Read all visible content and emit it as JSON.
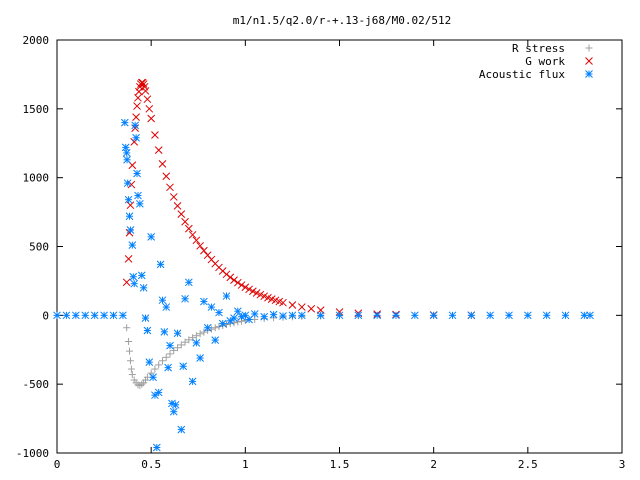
{
  "chart_data": {
    "type": "scatter",
    "title": "m1/n1.5/q2.0/r-+.13-j68/M0.02/512",
    "xlabel": "",
    "ylabel": "",
    "xlim": [
      0,
      3
    ],
    "ylim": [
      -1000,
      2000
    ],
    "xticks": [
      0,
      0.5,
      1,
      1.5,
      2,
      2.5,
      3
    ],
    "xtick_labels": [
      "0",
      "0.5",
      "1",
      "1.5",
      "2",
      "2.5",
      "3"
    ],
    "yticks": [
      -1000,
      -500,
      0,
      500,
      1000,
      1500,
      2000
    ],
    "ytick_labels": [
      "-1000",
      "-500",
      "0",
      "500",
      "1000",
      "1500",
      "2000"
    ],
    "grid": false,
    "legend_position": "top-right",
    "series": [
      {
        "name": "R stress",
        "marker": "plus",
        "color": "#a0a0a0",
        "points": [
          [
            0.37,
            -90
          ],
          [
            0.38,
            -190
          ],
          [
            0.385,
            -260
          ],
          [
            0.39,
            -330
          ],
          [
            0.395,
            -390
          ],
          [
            0.4,
            -430
          ],
          [
            0.41,
            -470
          ],
          [
            0.42,
            -490
          ],
          [
            0.43,
            -505
          ],
          [
            0.44,
            -510
          ],
          [
            0.45,
            -500
          ],
          [
            0.46,
            -490
          ],
          [
            0.47,
            -470
          ],
          [
            0.48,
            -450
          ],
          [
            0.5,
            -420
          ],
          [
            0.52,
            -390
          ],
          [
            0.54,
            -360
          ],
          [
            0.56,
            -330
          ],
          [
            0.58,
            -305
          ],
          [
            0.6,
            -280
          ],
          [
            0.62,
            -255
          ],
          [
            0.64,
            -235
          ],
          [
            0.66,
            -215
          ],
          [
            0.68,
            -195
          ],
          [
            0.7,
            -178
          ],
          [
            0.72,
            -162
          ],
          [
            0.74,
            -148
          ],
          [
            0.76,
            -134
          ],
          [
            0.78,
            -122
          ],
          [
            0.8,
            -110
          ],
          [
            0.82,
            -100
          ],
          [
            0.84,
            -90
          ],
          [
            0.86,
            -82
          ],
          [
            0.88,
            -74
          ],
          [
            0.9,
            -67
          ],
          [
            0.92,
            -60
          ],
          [
            0.94,
            -54
          ],
          [
            0.96,
            -48
          ],
          [
            0.98,
            -43
          ],
          [
            1.0,
            -38
          ],
          [
            1.05,
            -30
          ],
          [
            1.1,
            -23
          ],
          [
            1.15,
            -18
          ],
          [
            1.2,
            -14
          ],
          [
            1.25,
            -11
          ],
          [
            1.3,
            -8
          ],
          [
            1.4,
            -5
          ],
          [
            1.5,
            -3
          ],
          [
            1.6,
            -2
          ],
          [
            1.8,
            -1
          ],
          [
            2.0,
            0
          ],
          [
            2.2,
            0
          ]
        ]
      },
      {
        "name": "G work",
        "marker": "cross",
        "color": "#e00000",
        "points": [
          [
            0.37,
            240
          ],
          [
            0.38,
            410
          ],
          [
            0.385,
            600
          ],
          [
            0.39,
            800
          ],
          [
            0.395,
            950
          ],
          [
            0.4,
            1090
          ],
          [
            0.41,
            1260
          ],
          [
            0.415,
            1360
          ],
          [
            0.42,
            1440
          ],
          [
            0.425,
            1520
          ],
          [
            0.43,
            1580
          ],
          [
            0.435,
            1625
          ],
          [
            0.44,
            1660
          ],
          [
            0.445,
            1680
          ],
          [
            0.45,
            1690
          ],
          [
            0.455,
            1690
          ],
          [
            0.46,
            1680
          ],
          [
            0.465,
            1660
          ],
          [
            0.47,
            1630
          ],
          [
            0.48,
            1570
          ],
          [
            0.49,
            1500
          ],
          [
            0.5,
            1430
          ],
          [
            0.52,
            1310
          ],
          [
            0.54,
            1200
          ],
          [
            0.56,
            1100
          ],
          [
            0.58,
            1010
          ],
          [
            0.6,
            930
          ],
          [
            0.62,
            860
          ],
          [
            0.64,
            795
          ],
          [
            0.66,
            735
          ],
          [
            0.68,
            680
          ],
          [
            0.7,
            630
          ],
          [
            0.72,
            585
          ],
          [
            0.74,
            545
          ],
          [
            0.76,
            505
          ],
          [
            0.78,
            470
          ],
          [
            0.8,
            437
          ],
          [
            0.82,
            405
          ],
          [
            0.84,
            375
          ],
          [
            0.86,
            348
          ],
          [
            0.88,
            322
          ],
          [
            0.9,
            298
          ],
          [
            0.92,
            276
          ],
          [
            0.94,
            256
          ],
          [
            0.96,
            237
          ],
          [
            0.98,
            220
          ],
          [
            1.0,
            204
          ],
          [
            1.02,
            189
          ],
          [
            1.04,
            175
          ],
          [
            1.06,
            162
          ],
          [
            1.08,
            150
          ],
          [
            1.1,
            139
          ],
          [
            1.12,
            128
          ],
          [
            1.14,
            118
          ],
          [
            1.16,
            109
          ],
          [
            1.18,
            100
          ],
          [
            1.2,
            92
          ],
          [
            1.25,
            75
          ],
          [
            1.3,
            60
          ],
          [
            1.35,
            48
          ],
          [
            1.4,
            38
          ],
          [
            1.5,
            24
          ],
          [
            1.6,
            15
          ],
          [
            1.7,
            9
          ],
          [
            1.8,
            6
          ],
          [
            2.0,
            3
          ],
          [
            2.2,
            1
          ]
        ]
      },
      {
        "name": "Acoustic flux",
        "marker": "star",
        "color": "#0080ff",
        "points": [
          [
            0.0,
            0
          ],
          [
            0.05,
            0
          ],
          [
            0.1,
            0
          ],
          [
            0.15,
            0
          ],
          [
            0.2,
            0
          ],
          [
            0.25,
            0
          ],
          [
            0.3,
            0
          ],
          [
            0.35,
            0
          ],
          [
            0.36,
            1400
          ],
          [
            0.365,
            1220
          ],
          [
            0.37,
            1180
          ],
          [
            0.372,
            1130
          ],
          [
            0.375,
            960
          ],
          [
            0.38,
            840
          ],
          [
            0.385,
            720
          ],
          [
            0.39,
            620
          ],
          [
            0.4,
            510
          ],
          [
            0.405,
            280
          ],
          [
            0.41,
            230
          ],
          [
            0.415,
            1380
          ],
          [
            0.42,
            1290
          ],
          [
            0.425,
            1030
          ],
          [
            0.43,
            870
          ],
          [
            0.44,
            810
          ],
          [
            0.45,
            290
          ],
          [
            0.46,
            200
          ],
          [
            0.47,
            -20
          ],
          [
            0.48,
            -110
          ],
          [
            0.49,
            -340
          ],
          [
            0.5,
            570
          ],
          [
            0.51,
            -450
          ],
          [
            0.52,
            -580
          ],
          [
            0.53,
            -960
          ],
          [
            0.54,
            -560
          ],
          [
            0.55,
            370
          ],
          [
            0.56,
            110
          ],
          [
            0.57,
            -120
          ],
          [
            0.58,
            60
          ],
          [
            0.59,
            -380
          ],
          [
            0.6,
            -220
          ],
          [
            0.61,
            -640
          ],
          [
            0.62,
            -700
          ],
          [
            0.63,
            -650
          ],
          [
            0.64,
            -130
          ],
          [
            0.66,
            -830
          ],
          [
            0.67,
            -370
          ],
          [
            0.68,
            120
          ],
          [
            0.7,
            240
          ],
          [
            0.72,
            -480
          ],
          [
            0.74,
            -200
          ],
          [
            0.76,
            -310
          ],
          [
            0.78,
            100
          ],
          [
            0.8,
            -90
          ],
          [
            0.82,
            60
          ],
          [
            0.84,
            -180
          ],
          [
            0.86,
            20
          ],
          [
            0.88,
            -60
          ],
          [
            0.9,
            140
          ],
          [
            0.92,
            -40
          ],
          [
            0.94,
            -20
          ],
          [
            0.96,
            30
          ],
          [
            0.98,
            -10
          ],
          [
            1.0,
            0
          ],
          [
            1.02,
            -30
          ],
          [
            1.05,
            10
          ],
          [
            1.1,
            -10
          ],
          [
            1.15,
            5
          ],
          [
            1.2,
            -5
          ],
          [
            1.25,
            0
          ],
          [
            1.3,
            0
          ],
          [
            1.4,
            0
          ],
          [
            1.5,
            0
          ],
          [
            1.6,
            0
          ],
          [
            1.7,
            0
          ],
          [
            1.8,
            0
          ],
          [
            1.9,
            0
          ],
          [
            2.0,
            0
          ],
          [
            2.1,
            0
          ],
          [
            2.2,
            0
          ],
          [
            2.3,
            0
          ],
          [
            2.4,
            0
          ],
          [
            2.5,
            0
          ],
          [
            2.6,
            0
          ],
          [
            2.7,
            0
          ],
          [
            2.8,
            0
          ],
          [
            2.83,
            0
          ]
        ]
      }
    ]
  }
}
